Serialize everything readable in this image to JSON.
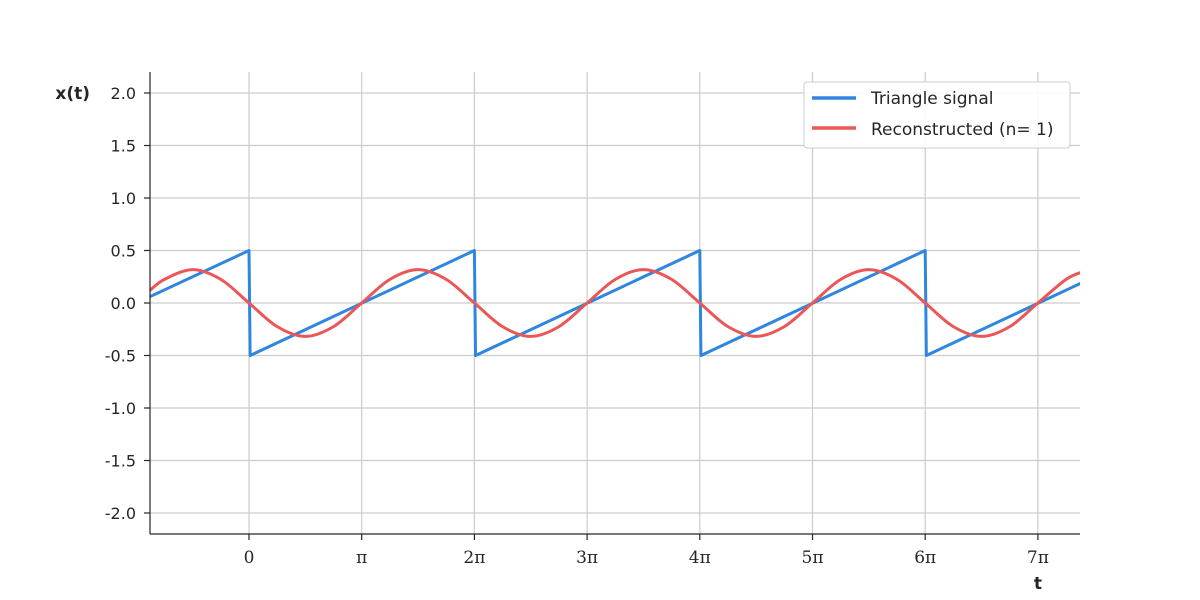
{
  "chart_data": {
    "type": "line",
    "title": "",
    "xlabel": "t",
    "ylabel": "x(t)",
    "x_unit": "pi",
    "xlim": [
      -0.8796,
      7.405
    ],
    "ylim": [
      -2.2,
      2.2
    ],
    "x_ticks": [
      {
        "value": 0,
        "label": "0"
      },
      {
        "value": 1,
        "label": "π"
      },
      {
        "value": 2,
        "label": "2π"
      },
      {
        "value": 3,
        "label": "3π"
      },
      {
        "value": 4,
        "label": "4π"
      },
      {
        "value": 5,
        "label": "5π"
      },
      {
        "value": 6,
        "label": "6π"
      },
      {
        "value": 7,
        "label": "7π"
      }
    ],
    "y_ticks": [
      {
        "value": 2.0,
        "label": "2.0"
      },
      {
        "value": 1.5,
        "label": "1.5"
      },
      {
        "value": 1.0,
        "label": "1.0"
      },
      {
        "value": 0.5,
        "label": "0.5"
      },
      {
        "value": 0.0,
        "label": "0.0"
      },
      {
        "value": -0.5,
        "label": "-0.5"
      },
      {
        "value": -1.0,
        "label": "-1.0"
      },
      {
        "value": -1.5,
        "label": "-1.5"
      },
      {
        "value": -2.0,
        "label": "-2.0"
      }
    ],
    "grid": true,
    "legend_position": "top-right",
    "series": [
      {
        "name": "Triangle signal",
        "color": "#2e86de",
        "x": [
          -0.8796,
          0,
          0.01,
          2,
          2.01,
          4,
          4.01,
          6,
          6.01,
          7.405
        ],
        "y": [
          0.06,
          0.5,
          -0.5,
          0.5,
          -0.5,
          0.5,
          -0.5,
          0.5,
          -0.5,
          0.2
        ]
      },
      {
        "name": "Reconstructed (n= 1)",
        "color": "#eb5757",
        "x": [
          -0.8796,
          -0.75,
          -0.5,
          -0.25,
          0,
          0.25,
          0.5,
          0.75,
          1,
          1.25,
          1.5,
          1.75,
          2,
          2.25,
          2.5,
          2.75,
          3,
          3.25,
          3.5,
          3.75,
          4,
          4.25,
          4.5,
          4.75,
          5,
          5.25,
          5.5,
          5.75,
          6,
          6.25,
          6.5,
          6.75,
          7,
          7.25,
          7.405
        ],
        "y": [
          0.12,
          0.225,
          0.318,
          0.225,
          0,
          -0.225,
          -0.318,
          -0.225,
          0,
          0.225,
          0.318,
          0.225,
          0,
          -0.225,
          -0.318,
          -0.225,
          0,
          0.225,
          0.318,
          0.225,
          0,
          -0.225,
          -0.318,
          -0.225,
          0,
          0.225,
          0.318,
          0.225,
          0,
          -0.225,
          -0.318,
          -0.225,
          0,
          0.225,
          0.3
        ]
      }
    ]
  }
}
